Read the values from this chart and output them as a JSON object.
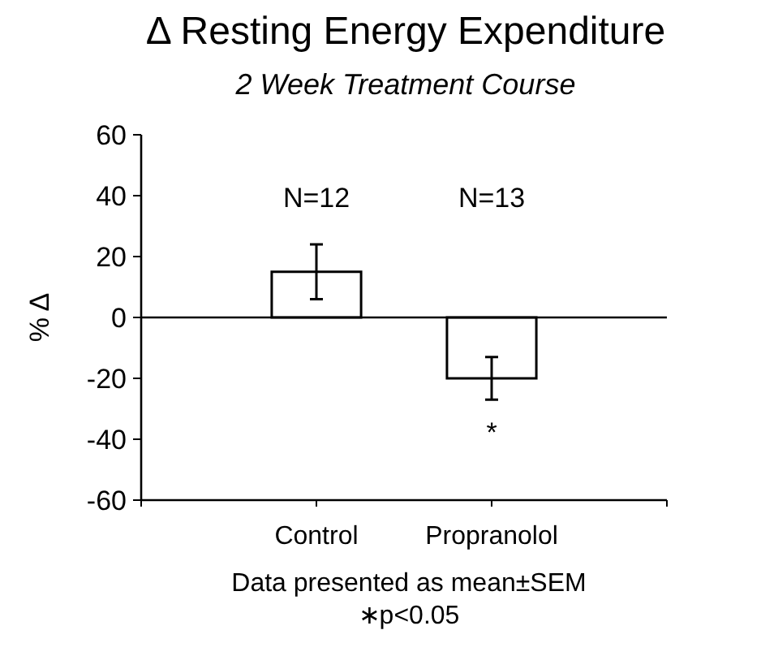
{
  "chart_data": {
    "type": "bar",
    "title": "Δ Resting Energy Expenditure",
    "subtitle": "2 Week Treatment Course",
    "ylabel": "% Δ",
    "categories": [
      "Control",
      "Propranolol"
    ],
    "series": [
      {
        "color": "#ffffff",
        "values": [
          15,
          -20
        ],
        "errors": [
          9,
          7
        ]
      }
    ],
    "ylim": [
      -60,
      60
    ],
    "yticks": [
      -60,
      -40,
      -20,
      0,
      20,
      40,
      60
    ],
    "grid": false,
    "ref_lines": [
      {
        "axis": "y",
        "value": 0,
        "color": "#000000"
      }
    ],
    "annotations": [
      "N=12",
      "N=13",
      "*",
      "Data presented as mean±SEM",
      "∗p<0.05"
    ]
  }
}
